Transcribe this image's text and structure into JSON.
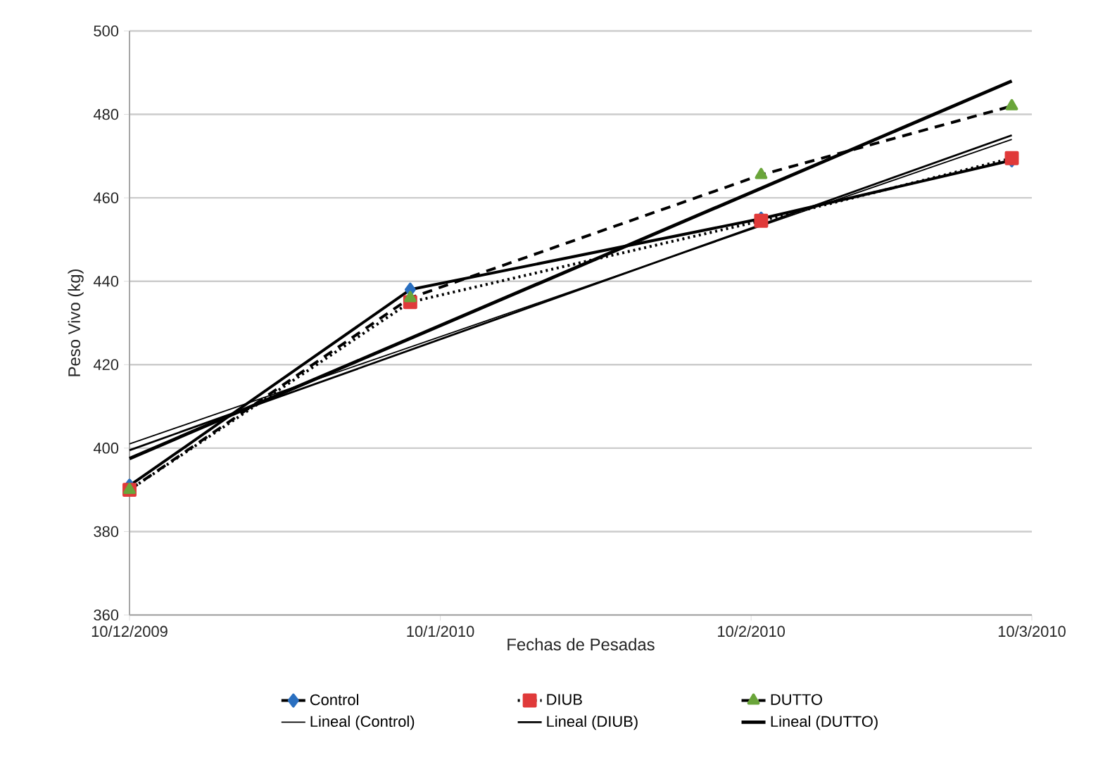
{
  "chart_data": {
    "type": "line",
    "xlabel": "Fechas de Pesadas",
    "ylabel": "Peso Vivo (kg)",
    "xlim": [
      "2009-12-10",
      "2010-03-10"
    ],
    "ylim": [
      360,
      500
    ],
    "xticks": [
      {
        "value": "2009-12-10",
        "label": "10/12/2009"
      },
      {
        "value": "2010-01-10",
        "label": "10/1/2010"
      },
      {
        "value": "2010-02-10",
        "label": "10/2/2010"
      },
      {
        "value": "2010-03-10",
        "label": "10/3/2010"
      }
    ],
    "yticks": [
      360,
      380,
      400,
      420,
      440,
      460,
      480,
      500
    ],
    "grid": "y",
    "legend": "bottom",
    "series": [
      {
        "name": "Control",
        "color": "#2a6fc0",
        "marker": "diamond",
        "line_style": "solid",
        "x": [
          "2009-12-10",
          "2010-01-07",
          "2010-02-11",
          "2010-03-08"
        ],
        "values": [
          391,
          438,
          455,
          469
        ]
      },
      {
        "name": "DIUB",
        "color": "#e03a3a",
        "marker": "square",
        "line_style": "dotted",
        "x": [
          "2009-12-10",
          "2010-01-07",
          "2010-02-11",
          "2010-03-08"
        ],
        "values": [
          390,
          435,
          454.5,
          469.5
        ]
      },
      {
        "name": "DUTTO",
        "color": "#6aa53a",
        "marker": "triangle",
        "line_style": "dashed",
        "x": [
          "2009-12-10",
          "2010-01-07",
          "2010-02-11",
          "2010-03-08"
        ],
        "values": [
          390,
          436,
          465.5,
          482
        ]
      },
      {
        "name": "Lineal (Control)",
        "color": "#000000",
        "marker": "none",
        "line_style": "solid",
        "x": [
          "2009-12-10",
          "2010-03-08"
        ],
        "values": [
          401,
          474
        ]
      },
      {
        "name": "Lineal (DIUB)",
        "color": "#000000",
        "marker": "none",
        "line_style": "solid",
        "x": [
          "2009-12-10",
          "2010-03-08"
        ],
        "values": [
          399.5,
          475
        ]
      },
      {
        "name": "Lineal (DUTTO)",
        "color": "#000000",
        "marker": "none",
        "line_style": "solid",
        "x": [
          "2009-12-10",
          "2010-03-08"
        ],
        "values": [
          397.5,
          488
        ]
      }
    ]
  }
}
